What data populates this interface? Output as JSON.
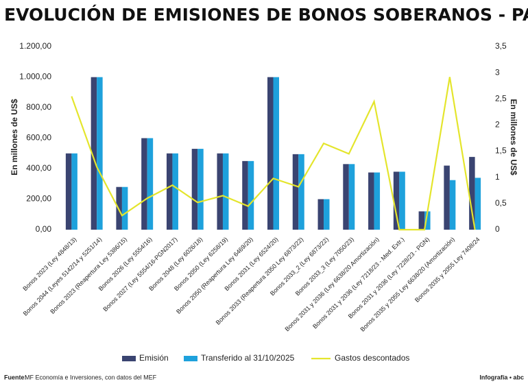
{
  "chart_data": {
    "type": "bar_line",
    "title": "EVOLUCIÓN DE EMISIONES DE BONOS SOBERANOS - PARAGUAY",
    "y_label": "En millones de US$",
    "y2_label": "En millones de US$",
    "source_label": "Fuente:",
    "source": "MF Economía e Inversiones, con datos del MEF",
    "credit": "Infografía • abc",
    "categories": [
      "Bonos 2023 (Ley 4848/13)",
      "Bonos 2044 (Leyes 5142/14 y 5251/14)",
      "Bonos 2023 (Reapertura Ley 5386/15)",
      "Bonos 2026 (Ley 5554/16)",
      "Bonos 2027 (Ley 5554/16-PGN2017)",
      "Bonos 2048 (Ley 6026/18)",
      "Bonos 2050 (Ley 6258/19)",
      "Bonos 2050 (Reapertura Ley 6469/20)",
      "Bonos 2031 (Ley 6524/20)",
      "Bonos 2033 (Reapertura 2050 Ley 6873/22)",
      "Bonos 2033_2 (Ley 6873/22)",
      "Bonos 2033_3 (Ley 7050/23)",
      "Bonos 2031 y 2036 (Ley 6638/20 Amortización)",
      "Bonos 2031 y 2036 (Ley 7218/23 - Med. Extr.)",
      "Bonos 2031 y 2036 (Ley 7228/23 - PGN)",
      "Bonos 2035 y 2055 Ley 6638/20 (Amortización)",
      "Bonos 2035 y 2055 Ley 7408/24"
    ],
    "series": [
      {
        "name": "Emisión",
        "type": "bar",
        "color": "#3a4471",
        "values": [
          500,
          1000,
          280,
          600,
          500,
          530,
          500,
          450,
          1000,
          495,
          200,
          430,
          375,
          380,
          120,
          420,
          477
        ]
      },
      {
        "name": "Transferido al 31/10/2025",
        "type": "bar",
        "color": "#1ea1dc",
        "values": [
          500,
          1000,
          280,
          600,
          500,
          530,
          500,
          450,
          1000,
          495,
          200,
          430,
          375,
          380,
          120,
          325,
          340
        ]
      },
      {
        "name": "Gastos descontados",
        "type": "line",
        "axis": "y2",
        "color": "#e4e52c",
        "values": [
          2.55,
          1.2,
          0.27,
          0.6,
          0.85,
          0.52,
          0.65,
          0.45,
          0.98,
          0.82,
          1.65,
          1.45,
          2.45,
          0,
          0,
          2.92,
          0
        ]
      }
    ],
    "ylim": [
      0,
      1200
    ],
    "yticks": [
      {
        "value": 0,
        "label": "0,00"
      },
      {
        "value": 200,
        "label": "200,00"
      },
      {
        "value": 400,
        "label": "400,00"
      },
      {
        "value": 600,
        "label": "600,00"
      },
      {
        "value": 800,
        "label": "800,00"
      },
      {
        "value": 1000,
        "label": "1.000,00"
      },
      {
        "value": 1200,
        "label": "1.200,00"
      }
    ],
    "y2lim": [
      0,
      3.5
    ],
    "y2ticks": [
      0,
      {
        "value": 0.5,
        "label": "0,5"
      },
      1,
      {
        "value": 1.5,
        "label": "1,5"
      },
      2,
      {
        "value": 2.5,
        "label": "2,5"
      },
      3,
      {
        "value": 3.5,
        "label": "3,5"
      }
    ],
    "grid": false
  }
}
